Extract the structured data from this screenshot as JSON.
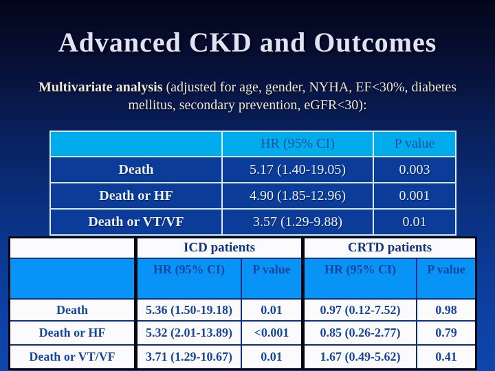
{
  "slide": {
    "title": "Advanced CKD and Outcomes",
    "subtitle_bold": "Multivariate analysis",
    "subtitle_rest": " (adjusted for age, gender, NYHA, EF<30%, diabetes mellitus, secondary prevention, eGFR<30):"
  },
  "colors": {
    "background_top": "#03061a",
    "background_bottom": "#0e46ad",
    "table1_header_bg": "#00acec",
    "table1_body_bg": "#0b3c9a",
    "table2_subheader_bg": "#0894f6",
    "table2_text": "#14469e",
    "title_text": "#dfe3f4"
  },
  "table1": {
    "col_headers": [
      "HR (95% CI)",
      "P value"
    ],
    "rows": [
      {
        "label": "Death",
        "hr": "5.17 (1.40-19.05)",
        "p": "0.003"
      },
      {
        "label": "Death or HF",
        "hr": "4.90 (1.85-12.96)",
        "p": "0.001"
      },
      {
        "label": "Death or VT/VF",
        "hr": "3.57 (1.29-9.88)",
        "p": "0.01"
      }
    ]
  },
  "table2": {
    "group_headers": {
      "icd": "ICD patients",
      "crtd": "CRTD patients"
    },
    "sub_headers": {
      "hr": "HR (95% CI)",
      "p": "P value"
    },
    "rows": [
      {
        "label": "Death",
        "icd_hr": "5.36 (1.50-19.18)",
        "icd_p": "0.01",
        "crtd_hr": "0.97 (0.12-7.52)",
        "crtd_p": "0.98"
      },
      {
        "label": "Death or HF",
        "icd_hr": "5.32 (2.01-13.89)",
        "icd_p": "<0.001",
        "crtd_hr": "0.85 (0.26-2.77)",
        "crtd_p": "0.79"
      },
      {
        "label": "Death or VT/VF",
        "icd_hr": "3.71 (1.29-10.67)",
        "icd_p": "0.01",
        "crtd_hr": "1.67 (0.49-5.62)",
        "crtd_p": "0.41"
      }
    ]
  }
}
